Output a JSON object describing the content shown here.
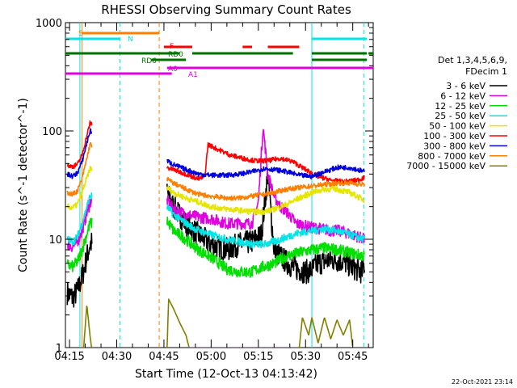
{
  "chart_data": {
    "type": "line",
    "title": "RHESSI Observing Summary Count Rates",
    "xlabel": "Start Time (12-Oct-13 04:13:42)",
    "ylabel": "Count Rate (s^-1 detector^-1)",
    "y_scale": "log",
    "ylim": [
      1,
      1000
    ],
    "xlim_min": [
      253.7,
      351.5
    ],
    "x_ticks": [
      "04:15",
      "04:30",
      "04:45",
      "05:00",
      "05:15",
      "05:30",
      "05:45"
    ],
    "y_ticks": [
      "1",
      "10",
      "100",
      "1000"
    ],
    "legend_header": [
      "Det 1,3,4,5,6,9,",
      "FDecim 1"
    ],
    "footer_date": "22-Oct-2021 23:14",
    "flag_labels": [
      "S",
      "N",
      "F",
      "RD0",
      "RD6",
      "A0",
      "A1"
    ],
    "vlines": [
      {
        "t": 258.3,
        "color": "#00e5e5",
        "style": "solid"
      },
      {
        "t": 259.0,
        "color": "#ff7f00",
        "style": "solid"
      },
      {
        "t": 271.0,
        "color": "#00e5e5",
        "style": "dashed"
      },
      {
        "t": 283.5,
        "color": "#ff7f00",
        "style": "dashed"
      },
      {
        "t": 332.0,
        "color": "#00e5e5",
        "style": "solid"
      },
      {
        "t": 348.5,
        "color": "#00e5e5",
        "style": "dashed"
      }
    ],
    "series": [
      {
        "name": "3 - 6 keV",
        "color": "#000000",
        "jitter": 0.25,
        "points": [
          [
            254.3,
            3.2
          ],
          [
            256,
            2.9
          ],
          [
            257.5,
            3.3
          ],
          [
            259,
            4.5
          ],
          [
            261.5,
            9
          ],
          [
            286,
            27
          ],
          [
            288,
            20
          ],
          [
            292,
            14
          ],
          [
            296,
            11
          ],
          [
            300,
            9
          ],
          [
            305,
            8
          ],
          [
            309,
            9
          ],
          [
            313,
            9.5
          ],
          [
            316,
            11
          ],
          [
            318,
            40
          ],
          [
            320,
            8
          ],
          [
            323,
            6.5
          ],
          [
            326,
            5.5
          ],
          [
            330,
            5
          ],
          [
            332,
            5.2
          ],
          [
            334,
            6
          ],
          [
            338,
            6.5
          ],
          [
            342,
            6.3
          ],
          [
            345,
            5.5
          ],
          [
            348,
            5
          ],
          [
            348.8,
            6
          ]
        ]
      },
      {
        "name": "6 - 12 keV",
        "color": "#e000e0",
        "jitter": 0.12,
        "points": [
          [
            254.3,
            9
          ],
          [
            256,
            8.5
          ],
          [
            257.5,
            9.5
          ],
          [
            259,
            12
          ],
          [
            261.5,
            22
          ],
          [
            286,
            23
          ],
          [
            288,
            19
          ],
          [
            292,
            17
          ],
          [
            296,
            16
          ],
          [
            300,
            15.5
          ],
          [
            305,
            14
          ],
          [
            309,
            14
          ],
          [
            313,
            14
          ],
          [
            315,
            22
          ],
          [
            316.5,
            110
          ],
          [
            318,
            40
          ],
          [
            320,
            25
          ],
          [
            322,
            20
          ],
          [
            324,
            18
          ],
          [
            327,
            14
          ],
          [
            331,
            13
          ],
          [
            335,
            12.5
          ],
          [
            338,
            12
          ],
          [
            341,
            12
          ],
          [
            345,
            11
          ],
          [
            348.8,
            10
          ]
        ]
      },
      {
        "name": "12 - 25 keV",
        "color": "#00e000",
        "jitter": 0.12,
        "points": [
          [
            254.3,
            5.8
          ],
          [
            256,
            5.6
          ],
          [
            257.5,
            6.2
          ],
          [
            259,
            8
          ],
          [
            261.5,
            14
          ],
          [
            286,
            15
          ],
          [
            288,
            12
          ],
          [
            292,
            10
          ],
          [
            296,
            8
          ],
          [
            300,
            6.8
          ],
          [
            305,
            5.3
          ],
          [
            309,
            5
          ],
          [
            313,
            5
          ],
          [
            316,
            5.5
          ],
          [
            320,
            6
          ],
          [
            324,
            7
          ],
          [
            328,
            7.5
          ],
          [
            332,
            8
          ],
          [
            336,
            8.3
          ],
          [
            340,
            8
          ],
          [
            344,
            7.5
          ],
          [
            348.8,
            7
          ]
        ]
      },
      {
        "name": "25 - 50 keV",
        "color": "#00e5e5",
        "jitter": 0.08,
        "points": [
          [
            254.3,
            10
          ],
          [
            256,
            9.5
          ],
          [
            257.5,
            10.5
          ],
          [
            259,
            14
          ],
          [
            261.5,
            25
          ],
          [
            286,
            20
          ],
          [
            288,
            17
          ],
          [
            292,
            14
          ],
          [
            296,
            12
          ],
          [
            300,
            11
          ],
          [
            305,
            10
          ],
          [
            309,
            9.5
          ],
          [
            313,
            9
          ],
          [
            317,
            9
          ],
          [
            320,
            9.5
          ],
          [
            324,
            10.5
          ],
          [
            328,
            11.5
          ],
          [
            332,
            12
          ],
          [
            336,
            12.5
          ],
          [
            340,
            12
          ],
          [
            344,
            11
          ],
          [
            348.8,
            10
          ]
        ]
      },
      {
        "name": "50 - 100 keV",
        "color": "#e5e500",
        "jitter": 0.06,
        "points": [
          [
            254.3,
            20
          ],
          [
            256,
            19.5
          ],
          [
            257.5,
            21
          ],
          [
            259,
            27
          ],
          [
            261.5,
            45
          ],
          [
            286,
            30
          ],
          [
            288,
            27
          ],
          [
            292,
            24
          ],
          [
            296,
            22
          ],
          [
            300,
            20
          ],
          [
            305,
            19
          ],
          [
            309,
            18.5
          ],
          [
            313,
            18
          ],
          [
            317,
            18
          ],
          [
            320,
            19
          ],
          [
            324,
            21
          ],
          [
            328,
            24
          ],
          [
            332,
            27
          ],
          [
            336,
            29
          ],
          [
            340,
            29
          ],
          [
            344,
            27
          ],
          [
            348.8,
            23
          ]
        ]
      },
      {
        "name": "100 - 300 keV",
        "color": "#ff0000",
        "jitter": 0.05,
        "points": [
          [
            254.3,
            48
          ],
          [
            256,
            47
          ],
          [
            257.5,
            49
          ],
          [
            259,
            60
          ],
          [
            261.5,
            118
          ],
          [
            286,
            46
          ],
          [
            288,
            44
          ],
          [
            292,
            40
          ],
          [
            296,
            36
          ],
          [
            298,
            38
          ],
          [
            299,
            75
          ],
          [
            302,
            68
          ],
          [
            306,
            60
          ],
          [
            310,
            56
          ],
          [
            314,
            53
          ],
          [
            318,
            53
          ],
          [
            322,
            56
          ],
          [
            326,
            52
          ],
          [
            330,
            44
          ],
          [
            334,
            38
          ],
          [
            338,
            35
          ],
          [
            342,
            34
          ],
          [
            346,
            35
          ],
          [
            348.8,
            37
          ]
        ]
      },
      {
        "name": "300 - 800 keV",
        "color": "#0000e0",
        "jitter": 0.05,
        "points": [
          [
            254.3,
            40
          ],
          [
            256,
            38
          ],
          [
            257.5,
            41
          ],
          [
            259,
            52
          ],
          [
            261.5,
            100
          ],
          [
            286,
            53
          ],
          [
            288,
            49
          ],
          [
            292,
            44
          ],
          [
            296,
            40
          ],
          [
            300,
            39
          ],
          [
            305,
            39
          ],
          [
            309,
            40
          ],
          [
            313,
            42
          ],
          [
            317,
            45
          ],
          [
            320,
            44
          ],
          [
            324,
            42
          ],
          [
            328,
            39
          ],
          [
            332,
            38
          ],
          [
            336,
            42
          ],
          [
            340,
            46
          ],
          [
            344,
            46
          ],
          [
            348.8,
            42
          ]
        ]
      },
      {
        "name": "800 - 7000 keV",
        "color": "#ff7f00",
        "jitter": 0.05,
        "points": [
          [
            254.3,
            27
          ],
          [
            256,
            26
          ],
          [
            257.5,
            28
          ],
          [
            259,
            36
          ],
          [
            261.5,
            75
          ],
          [
            286,
            36
          ],
          [
            288,
            33
          ],
          [
            292,
            29
          ],
          [
            296,
            26
          ],
          [
            300,
            25
          ],
          [
            305,
            24
          ],
          [
            309,
            24
          ],
          [
            313,
            25
          ],
          [
            317,
            26
          ],
          [
            320,
            27
          ],
          [
            324,
            29
          ],
          [
            328,
            30
          ],
          [
            332,
            31
          ],
          [
            336,
            32
          ],
          [
            340,
            33
          ],
          [
            344,
            33
          ],
          [
            348.8,
            32
          ]
        ]
      },
      {
        "name": "7000 - 15000 keV",
        "color": "#808000",
        "jitter": 0,
        "points": [
          [
            259.5,
            1
          ],
          [
            260.5,
            2.5
          ],
          [
            261.5,
            1.3
          ],
          [
            262,
            1
          ],
          [
            286,
            1
          ],
          [
            286.5,
            2.8
          ],
          [
            288,
            2.3
          ],
          [
            290,
            1.7
          ],
          [
            292,
            1.3
          ],
          [
            293,
            1
          ],
          [
            328,
            1
          ],
          [
            329,
            1.9
          ],
          [
            331,
            1.3
          ],
          [
            332,
            1.9
          ],
          [
            334,
            1.1
          ],
          [
            336,
            1.9
          ],
          [
            338,
            1.2
          ],
          [
            340,
            1.8
          ],
          [
            342,
            1.3
          ],
          [
            344,
            1.8
          ],
          [
            345,
            1
          ]
        ]
      }
    ],
    "gaps": [
      [
        262.2,
        285.9
      ],
      [
        349.2,
        352
      ]
    ]
  }
}
